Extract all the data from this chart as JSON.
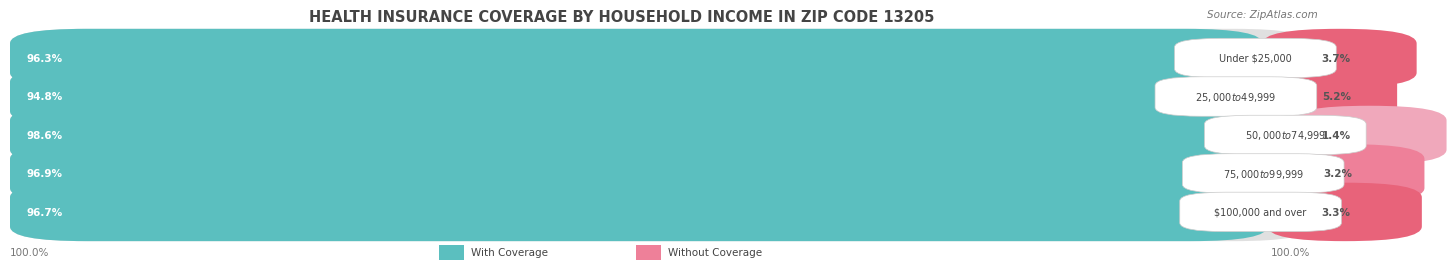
{
  "title": "HEALTH INSURANCE COVERAGE BY HOUSEHOLD INCOME IN ZIP CODE 13205",
  "source": "Source: ZipAtlas.com",
  "categories": [
    "Under $25,000",
    "$25,000 to $49,999",
    "$50,000 to $74,999",
    "$75,000 to $99,999",
    "$100,000 and over"
  ],
  "with_coverage": [
    96.3,
    94.8,
    98.6,
    96.9,
    96.7
  ],
  "without_coverage": [
    3.7,
    5.2,
    1.4,
    3.2,
    3.3
  ],
  "with_coverage_color": "#5BBFBF",
  "without_coverage_colors": [
    "#E8637A",
    "#E8637A",
    "#F0A8BB",
    "#EE8099",
    "#E8637A"
  ],
  "row_bg_colors": [
    "#F2F2F2",
    "#E8E8E8"
  ],
  "label_with_color": "#FFFFFF",
  "title_color": "#444444",
  "source_color": "#777777",
  "legend_with_color": "#5BBFBF",
  "legend_without_color": "#EE8099",
  "bottom_label": "100.0%",
  "bottom_label_color": "#777777",
  "cat_label_color": "#444444",
  "woc_label_color": "#555555"
}
